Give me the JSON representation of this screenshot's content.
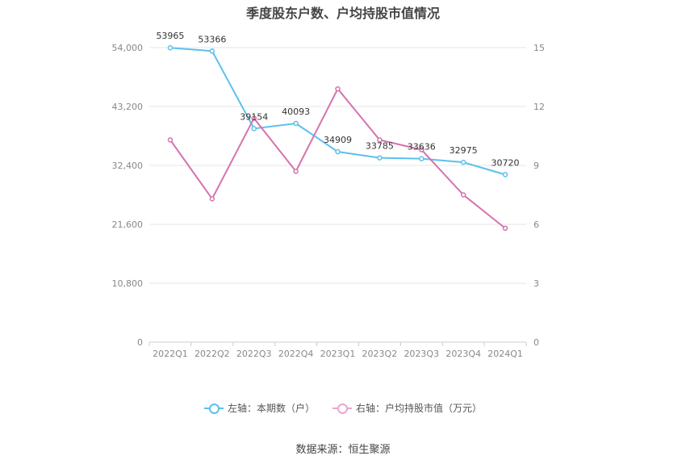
{
  "chart_data": {
    "type": "line",
    "title": "季度股东户数、户均持股市值情况",
    "categories": [
      "2022Q1",
      "2022Q2",
      "2022Q3",
      "2022Q4",
      "2023Q1",
      "2023Q2",
      "2023Q3",
      "2023Q4",
      "2024Q1"
    ],
    "series": [
      {
        "name": "左轴：本期数（户）",
        "axis": "left",
        "color": "#5bc0f0",
        "values": [
          53965,
          53366,
          39154,
          40093,
          34909,
          33785,
          33636,
          32975,
          30720
        ],
        "labels": [
          "53965",
          "53366",
          "39154",
          "40093",
          "34909",
          "33785",
          "33636",
          "32975",
          "30720"
        ]
      },
      {
        "name": "右轴：户均持股市值（万元）",
        "axis": "right",
        "color": "#d672b0",
        "values": [
          10.3,
          7.3,
          11.4,
          8.7,
          12.9,
          10.3,
          9.8,
          7.5,
          5.8
        ]
      }
    ],
    "left_axis": {
      "ylim": [
        0,
        54000
      ],
      "ticks": [
        "0",
        "10,800",
        "21,600",
        "32,400",
        "43,200",
        "54,000"
      ],
      "tick_values": [
        0,
        10800,
        21600,
        32400,
        43200,
        54000
      ]
    },
    "right_axis": {
      "ylim": [
        0,
        15
      ],
      "ticks": [
        "0",
        "3",
        "6",
        "9",
        "12",
        "15"
      ],
      "tick_values": [
        0,
        3,
        6,
        9,
        12,
        15
      ]
    },
    "grid": true,
    "legend_position": "bottom-center"
  },
  "source": "数据来源：恒生聚源"
}
